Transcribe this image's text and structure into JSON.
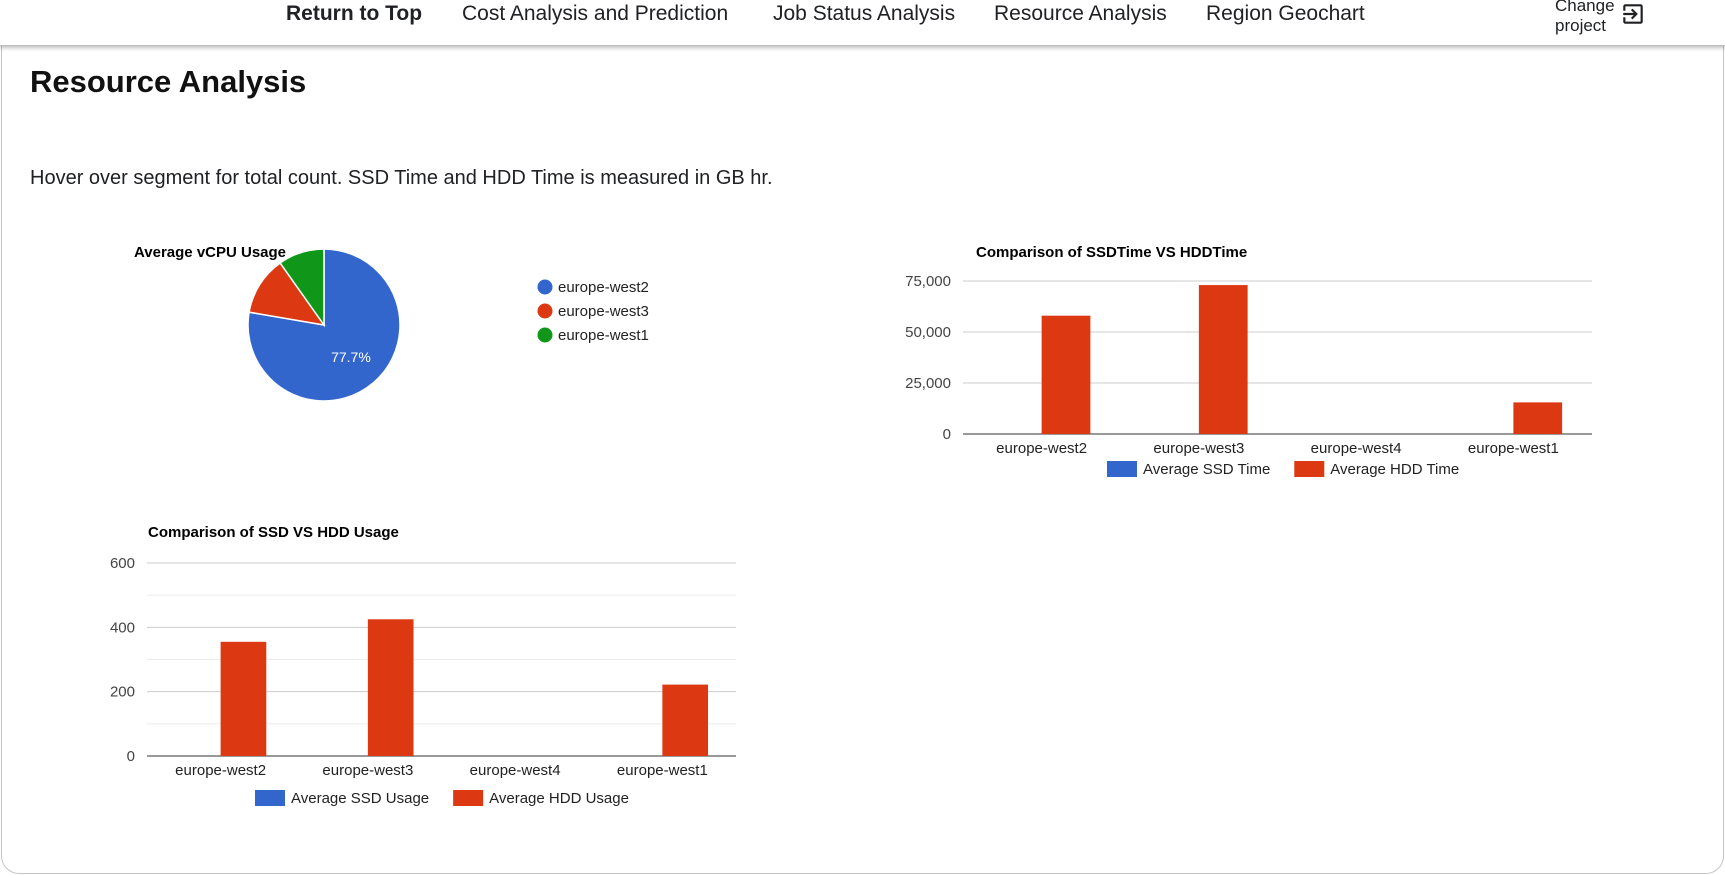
{
  "nav": {
    "items": [
      {
        "label": "Return to Top",
        "active": true
      },
      {
        "label": "Cost Analysis and Prediction",
        "active": false
      },
      {
        "label": "Job Status Analysis",
        "active": false
      },
      {
        "label": "Resource Analysis",
        "active": false
      },
      {
        "label": "Region Geochart",
        "active": false
      }
    ],
    "change_project": {
      "label": "Change\nproject",
      "icon": "exit-to-app-icon"
    }
  },
  "page": {
    "title": "Resource Analysis",
    "hint": "Hover over segment for total count. SSD Time and HDD Time is measured in GB hr."
  },
  "colors": {
    "blue": "#3366cc",
    "red": "#dc3912",
    "green": "#109618"
  },
  "chart_data": [
    {
      "id": "vcpu",
      "type": "pie",
      "title": "Average vCPU Usage",
      "labels": [
        "europe-west2",
        "europe-west3",
        "europe-west1"
      ],
      "values": [
        77.7,
        12.5,
        9.8
      ],
      "slice_labels": [
        "77.7%",
        "",
        ""
      ],
      "colors": [
        "#3366cc",
        "#dc3912",
        "#109618"
      ],
      "legend": "right"
    },
    {
      "id": "ssdtime",
      "type": "bar",
      "title": "Comparison of SSDTime VS HDDTime",
      "categories": [
        "europe-west2",
        "europe-west3",
        "europe-west4",
        "europe-west1"
      ],
      "series": [
        {
          "name": "Average SSD Time",
          "color": "#3366cc",
          "values": [
            0,
            0,
            0,
            0
          ]
        },
        {
          "name": "Average HDD Time",
          "color": "#dc3912",
          "values": [
            58000,
            73000,
            0,
            15500
          ]
        }
      ],
      "ylim": [
        0,
        75000
      ],
      "yticks": [
        0,
        25000,
        50000,
        75000
      ],
      "ytick_labels": [
        "0",
        "25,000",
        "50,000",
        "75,000"
      ],
      "grid": true,
      "legend": "bottom"
    },
    {
      "id": "ssdusage",
      "type": "bar",
      "title": "Comparison of SSD VS HDD Usage",
      "categories": [
        "europe-west2",
        "europe-west3",
        "europe-west4",
        "europe-west1"
      ],
      "series": [
        {
          "name": "Average SSD Usage",
          "color": "#3366cc",
          "values": [
            0,
            0,
            0,
            0
          ]
        },
        {
          "name": "Average HDD Usage",
          "color": "#dc3912",
          "values": [
            355,
            425,
            0,
            222
          ]
        }
      ],
      "ylim": [
        0,
        600
      ],
      "yticks": [
        0,
        200,
        400,
        600
      ],
      "ytick_labels": [
        "0",
        "200",
        "400",
        "600"
      ],
      "grid": true,
      "legend": "bottom"
    }
  ]
}
